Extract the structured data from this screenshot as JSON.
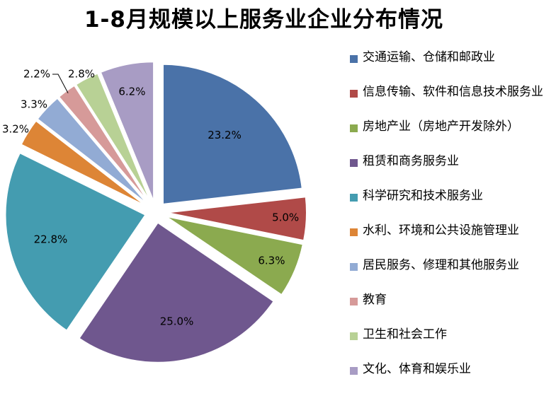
{
  "chart_data": {
    "type": "pie",
    "title": "1-8月规模以上服务业企业分布情况",
    "legend_position": "right",
    "slices": [
      {
        "category": "交通运输、仓储和邮政业",
        "value": 23.2,
        "label": "23.2%",
        "color": "#4a72a8"
      },
      {
        "category": "信息传输、软件和信息技术服务业",
        "value": 5.0,
        "label": "5.0%",
        "color": "#b04a48"
      },
      {
        "category": "房地产业（房地产开发除外）",
        "value": 6.3,
        "label": "6.3%",
        "color": "#8baa4f"
      },
      {
        "category": "租赁和商务服务业",
        "value": 25.0,
        "label": "25.0%",
        "color": "#6f578e"
      },
      {
        "category": "科学研究和技术服务业",
        "value": 22.8,
        "label": "22.8%",
        "color": "#449cb0"
      },
      {
        "category": "水利、环境和公共设施管理业",
        "value": 3.2,
        "label": "3.2%",
        "color": "#dd8536"
      },
      {
        "category": "居民服务、修理和其他服务业",
        "value": 3.3,
        "label": "3.3%",
        "color": "#92abd4"
      },
      {
        "category": "教育",
        "value": 2.2,
        "label": "2.2%",
        "color": "#d69a99"
      },
      {
        "category": "卫生和社会工作",
        "value": 2.8,
        "label": "2.8%",
        "color": "#b8d195"
      },
      {
        "category": "文化、体育和娱乐业",
        "value": 6.2,
        "label": "6.2%",
        "color": "#a89cc4"
      }
    ]
  }
}
